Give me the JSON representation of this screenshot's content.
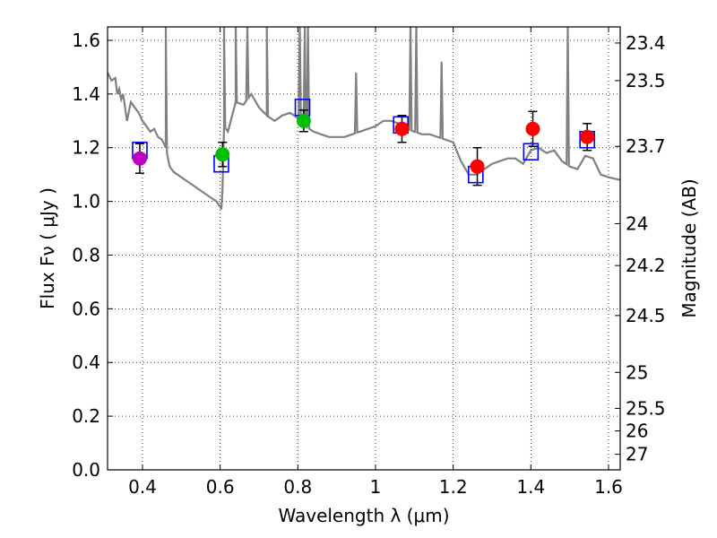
{
  "chart_data": {
    "type": "scatter",
    "title": "",
    "xlabel": "Wavelength  λ (μm)",
    "ylabel": "Flux  Fν  ( μJy )",
    "y2label": "Magnitude (AB)",
    "xlim": [
      0.31,
      1.63
    ],
    "ylim": [
      0.0,
      1.65
    ],
    "grid": true,
    "x_ticks": [
      0.4,
      0.6,
      0.8,
      1.0,
      1.2,
      1.4,
      1.6
    ],
    "x_tick_labels": [
      "0.4",
      "0.6",
      "0.8",
      "1",
      "1.2",
      "1.4",
      "1.6"
    ],
    "y_ticks": [
      0.0,
      0.2,
      0.4,
      0.6,
      0.8,
      1.0,
      1.2,
      1.4,
      1.6
    ],
    "y_tick_labels": [
      "0.0",
      "0.2",
      "0.4",
      "0.6",
      "0.8",
      "1.0",
      "1.2",
      "1.4",
      "1.6"
    ],
    "mag_ticks": [
      {
        "flux": 1.59,
        "label": "23.4"
      },
      {
        "flux": 1.45,
        "label": "23.5"
      },
      {
        "flux": 1.205,
        "label": "23.7"
      },
      {
        "flux": 0.917,
        "label": "24"
      },
      {
        "flux": 0.761,
        "label": "24.2"
      },
      {
        "flux": 0.575,
        "label": "24.5"
      },
      {
        "flux": 0.363,
        "label": "25"
      },
      {
        "flux": 0.229,
        "label": "25.5"
      },
      {
        "flux": 0.145,
        "label": "26"
      },
      {
        "flux": 0.058,
        "label": "27"
      }
    ],
    "photometry": [
      {
        "x": 0.393,
        "y": 1.16,
        "err": 0.055,
        "color": "#bf00bf"
      },
      {
        "x": 0.606,
        "y": 1.175,
        "err": 0.045,
        "color": "#00bf00"
      },
      {
        "x": 0.815,
        "y": 1.3,
        "err": 0.04,
        "color": "#00bf00"
      },
      {
        "x": 1.068,
        "y": 1.27,
        "err": 0.05,
        "color": "#ff0000"
      },
      {
        "x": 1.262,
        "y": 1.13,
        "err": 0.07,
        "color": "#ff0000"
      },
      {
        "x": 1.405,
        "y": 1.27,
        "err": 0.065,
        "color": "#ff0000"
      },
      {
        "x": 1.545,
        "y": 1.24,
        "err": 0.05,
        "color": "#ff0000"
      }
    ],
    "model_points": [
      {
        "x": 0.393,
        "y": 1.19
      },
      {
        "x": 0.603,
        "y": 1.14
      },
      {
        "x": 0.812,
        "y": 1.35
      },
      {
        "x": 1.065,
        "y": 1.285
      },
      {
        "x": 1.258,
        "y": 1.1
      },
      {
        "x": 1.4,
        "y": 1.185
      },
      {
        "x": 1.545,
        "y": 1.23
      }
    ],
    "spectrum": {
      "color": "#808080",
      "x": [
        0.31,
        0.32,
        0.33,
        0.335,
        0.34,
        0.345,
        0.35,
        0.36,
        0.37,
        0.38,
        0.39,
        0.4,
        0.41,
        0.42,
        0.43,
        0.44,
        0.45,
        0.46,
        0.47,
        0.48,
        0.5,
        0.52,
        0.54,
        0.56,
        0.58,
        0.59,
        0.6,
        0.603,
        0.606,
        0.61,
        0.62,
        0.64,
        0.66,
        0.68,
        0.7,
        0.72,
        0.74,
        0.76,
        0.78,
        0.8,
        0.82,
        0.84,
        0.86,
        0.88,
        0.9,
        0.92,
        0.94,
        0.96,
        0.98,
        1.0,
        1.02,
        1.04,
        1.06,
        1.08,
        1.1,
        1.12,
        1.14,
        1.16,
        1.18,
        1.2,
        1.22,
        1.24,
        1.26,
        1.28,
        1.3,
        1.32,
        1.34,
        1.36,
        1.38,
        1.4,
        1.42,
        1.44,
        1.46,
        1.48,
        1.5,
        1.52,
        1.54,
        1.56,
        1.58,
        1.6,
        1.63
      ],
      "y": [
        1.48,
        1.45,
        1.46,
        1.4,
        1.42,
        1.38,
        1.4,
        1.3,
        1.37,
        1.35,
        1.33,
        1.3,
        1.28,
        1.26,
        1.27,
        1.24,
        1.23,
        1.2,
        1.13,
        1.11,
        1.09,
        1.07,
        1.05,
        1.03,
        1.01,
        1.0,
        0.98,
        0.97,
        1.05,
        1.28,
        1.26,
        1.37,
        1.36,
        1.4,
        1.35,
        1.32,
        1.3,
        1.32,
        1.33,
        1.31,
        1.28,
        1.26,
        1.25,
        1.24,
        1.24,
        1.24,
        1.25,
        1.26,
        1.27,
        1.28,
        1.3,
        1.3,
        1.29,
        1.27,
        1.26,
        1.25,
        1.25,
        1.24,
        1.23,
        1.22,
        1.15,
        1.1,
        1.1,
        1.12,
        1.14,
        1.15,
        1.16,
        1.16,
        1.14,
        1.19,
        1.2,
        1.18,
        1.19,
        1.15,
        1.13,
        1.12,
        1.17,
        1.16,
        1.1,
        1.09,
        1.08
      ]
    },
    "spectrum_spikes": [
      {
        "x": 0.46,
        "y": 1.65
      },
      {
        "x": 0.61,
        "y": 1.65
      },
      {
        "x": 0.64,
        "y": 1.65
      },
      {
        "x": 0.67,
        "y": 1.65
      },
      {
        "x": 0.72,
        "y": 1.65
      },
      {
        "x": 0.805,
        "y": 1.65
      },
      {
        "x": 0.818,
        "y": 1.65
      },
      {
        "x": 0.826,
        "y": 1.65
      },
      {
        "x": 0.95,
        "y": 1.48
      },
      {
        "x": 1.09,
        "y": 1.65
      },
      {
        "x": 1.105,
        "y": 1.65
      },
      {
        "x": 1.17,
        "y": 1.52
      },
      {
        "x": 1.495,
        "y": 1.65
      }
    ]
  }
}
